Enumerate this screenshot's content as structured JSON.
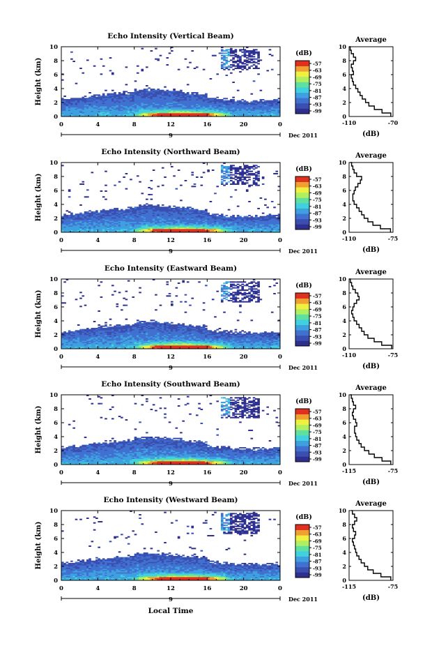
{
  "figure": {
    "xlabel": "Local Time",
    "date_label": "Dec 2011",
    "ylabel": "Height (km)",
    "colorbar_title": "(dB)",
    "colorbar_ticks": [
      "-57",
      "-63",
      "-69",
      "-75",
      "-81",
      "-87",
      "-93",
      "-99"
    ],
    "profile_title": "Average",
    "profile_xlabel": "(dB)",
    "colors": {
      "colormap": [
        "#2e2f8f",
        "#3a4fb0",
        "#4070d0",
        "#3fa0e0",
        "#40d0e0",
        "#60e0a0",
        "#b0f060",
        "#f0f040",
        "#f0a030",
        "#e03020"
      ]
    }
  },
  "chart_data": [
    {
      "type": "heatmap",
      "title": "Echo Intensity (Vertical Beam)",
      "xlabel": "",
      "ylabel": "Height (km)",
      "xlim": [
        0,
        24
      ],
      "ylim": [
        0,
        10
      ],
      "xticks": [
        "0",
        "4",
        "8",
        "12",
        "16",
        "20",
        "0"
      ],
      "yticks": [
        "0",
        "2",
        "4",
        "6",
        "8",
        "10"
      ],
      "date_tick": "9",
      "colorbar": {
        "label": "(dB)",
        "range": [
          -99,
          -57
        ]
      },
      "profile": {
        "title": "Average",
        "xlabel": "(dB)",
        "xlim": [
          -110,
          -70
        ],
        "xticks": [
          "-110",
          "-70"
        ],
        "yticks": [
          "0",
          "2",
          "4",
          "6",
          "8",
          "10"
        ],
        "heights": [
          0,
          0.5,
          1,
          1.5,
          2,
          2.5,
          3,
          3.5,
          4,
          4.5,
          5,
          5.5,
          6,
          6.5,
          7,
          7.5,
          8,
          8.5,
          9,
          9.5,
          10
        ],
        "values": [
          -72,
          -80,
          -87,
          -92,
          -95,
          -98,
          -100,
          -102,
          -104,
          -106,
          -107,
          -108,
          -106,
          -107,
          -108,
          -106,
          -104,
          -106,
          -108,
          -109,
          -110
        ]
      }
    },
    {
      "type": "heatmap",
      "title": "Echo Intensity (Northward Beam)",
      "xlabel": "",
      "ylabel": "Height (km)",
      "xlim": [
        0,
        24
      ],
      "ylim": [
        0,
        10
      ],
      "xticks": [
        "0",
        "4",
        "8",
        "12",
        "16",
        "20",
        "0"
      ],
      "yticks": [
        "0",
        "2",
        "4",
        "6",
        "8",
        "10"
      ],
      "date_tick": "9",
      "colorbar": {
        "label": "(dB)",
        "range": [
          -99,
          -57
        ]
      },
      "profile": {
        "title": "Average",
        "xlabel": "(dB)",
        "xlim": [
          -110,
          -75
        ],
        "xticks": [
          "-110",
          "-75"
        ],
        "yticks": [
          "0",
          "2",
          "4",
          "6",
          "8",
          "10"
        ],
        "heights": [
          0,
          0.5,
          1,
          1.5,
          2,
          2.5,
          3,
          3.5,
          4,
          4.5,
          5,
          5.5,
          6,
          6.5,
          7,
          7.5,
          8,
          8.5,
          9,
          9.5,
          10
        ],
        "values": [
          -77,
          -85,
          -91,
          -95,
          -98,
          -100,
          -102,
          -104,
          -106,
          -107,
          -107,
          -106,
          -105,
          -103,
          -101,
          -100,
          -104,
          -106,
          -107,
          -108,
          -109
        ]
      }
    },
    {
      "type": "heatmap",
      "title": "Echo Intensity (Eastward Beam)",
      "xlabel": "",
      "ylabel": "Height (km)",
      "xlim": [
        0,
        24
      ],
      "ylim": [
        0,
        10
      ],
      "xticks": [
        "0",
        "4",
        "8",
        "12",
        "16",
        "20",
        "0"
      ],
      "yticks": [
        "0",
        "2",
        "4",
        "6",
        "8",
        "10"
      ],
      "date_tick": "9",
      "colorbar": {
        "label": "(dB)",
        "range": [
          -99,
          -57
        ]
      },
      "profile": {
        "title": "Average",
        "xlabel": "(dB)",
        "xlim": [
          -110,
          -75
        ],
        "xticks": [
          "-110",
          "-75"
        ],
        "yticks": [
          "0",
          "2",
          "4",
          "6",
          "8",
          "10"
        ],
        "heights": [
          0,
          0.5,
          1,
          1.5,
          2,
          2.5,
          3,
          3.5,
          4,
          4.5,
          5,
          5.5,
          6,
          6.5,
          7,
          7.5,
          8,
          8.5,
          9,
          9.5,
          10
        ],
        "values": [
          -76,
          -84,
          -90,
          -95,
          -98,
          -100,
          -102,
          -104,
          -106,
          -107,
          -108,
          -107,
          -106,
          -104,
          -102,
          -103,
          -105,
          -107,
          -108,
          -109,
          -110
        ]
      }
    },
    {
      "type": "heatmap",
      "title": "Echo Intensity (Southward Beam)",
      "xlabel": "",
      "ylabel": "Height (km)",
      "xlim": [
        0,
        24
      ],
      "ylim": [
        0,
        10
      ],
      "xticks": [
        "0",
        "4",
        "8",
        "12",
        "16",
        "20",
        "0"
      ],
      "yticks": [
        "0",
        "2",
        "4",
        "6",
        "8",
        "10"
      ],
      "date_tick": "9",
      "colorbar": {
        "label": "(dB)",
        "range": [
          -99,
          -57
        ]
      },
      "profile": {
        "title": "Average",
        "xlabel": "(dB)",
        "xlim": [
          -115,
          -75
        ],
        "xticks": [
          "-115",
          "-75"
        ],
        "yticks": [
          "0",
          "2",
          "4",
          "6",
          "8",
          "10"
        ],
        "heights": [
          0,
          0.5,
          1,
          1.5,
          2,
          2.5,
          3,
          3.5,
          4,
          4.5,
          5,
          5.5,
          6,
          6.5,
          7,
          7.5,
          8,
          8.5,
          9,
          9.5,
          10
        ],
        "values": [
          -77,
          -85,
          -92,
          -97,
          -101,
          -104,
          -106,
          -108,
          -109,
          -110,
          -110,
          -108,
          -109,
          -111,
          -112,
          -111,
          -109,
          -111,
          -112,
          -113,
          -114
        ]
      }
    },
    {
      "type": "heatmap",
      "title": "Echo Intensity (Westward Beam)",
      "xlabel": "Local Time",
      "ylabel": "Height (km)",
      "xlim": [
        0,
        24
      ],
      "ylim": [
        0,
        10
      ],
      "xticks": [
        "0",
        "4",
        "8",
        "12",
        "16",
        "20",
        "0"
      ],
      "yticks": [
        "0",
        "2",
        "4",
        "6",
        "8",
        "10"
      ],
      "date_tick": "9",
      "colorbar": {
        "label": "(dB)",
        "range": [
          -99,
          -57
        ]
      },
      "profile": {
        "title": "Average",
        "xlabel": "(dB)",
        "xlim": [
          -115,
          -75
        ],
        "xticks": [
          "-115",
          "-75"
        ],
        "yticks": [
          "0",
          "2",
          "4",
          "6",
          "8",
          "10"
        ],
        "heights": [
          0,
          0.5,
          1,
          1.5,
          2,
          2.5,
          3,
          3.5,
          4,
          4.5,
          5,
          5.5,
          6,
          6.5,
          7,
          7.5,
          8,
          8.5,
          9,
          9.5,
          10
        ],
        "values": [
          -77,
          -86,
          -93,
          -98,
          -101,
          -104,
          -106,
          -108,
          -109,
          -110,
          -111,
          -112,
          -110,
          -109,
          -111,
          -112,
          -110,
          -108,
          -110,
          -112,
          -113
        ]
      }
    }
  ]
}
